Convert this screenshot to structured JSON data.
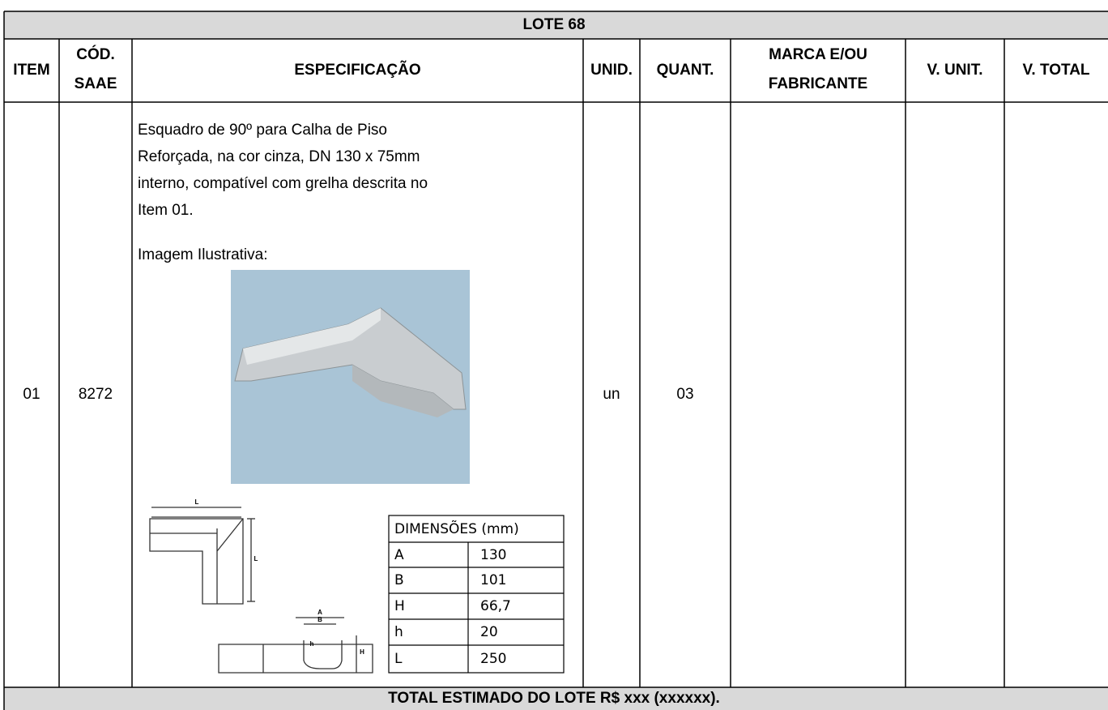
{
  "header": {
    "title": "LOTE 68"
  },
  "columns": [
    [
      "ITEM"
    ],
    [
      "CÓD.",
      "SAAE"
    ],
    [
      "ESPECIFICAÇÃO"
    ],
    [
      "UNID."
    ],
    [
      "QUANT."
    ],
    [
      "MARCA E/OU",
      "FABRICANTE"
    ],
    [
      "V. UNIT."
    ],
    [
      "V. TOTAL"
    ]
  ],
  "rows": [
    {
      "item": "01",
      "code": "8272",
      "specification": [
        "Esquadro de 90º para Calha de Piso",
        "Reforçada, na cor cinza, DN 130 x 75mm",
        "interno, compatível com grelha descrita no",
        "Item 01."
      ],
      "image_caption": "Imagem Ilustrativa:",
      "drawing_labels": [
        "L",
        "L",
        "A",
        "B",
        "h",
        "H"
      ],
      "dimensions": {
        "title": "DIMENSÕES (mm)",
        "rows": [
          [
            "A",
            "130"
          ],
          [
            "B",
            "101"
          ],
          [
            "H",
            "66,7"
          ],
          [
            "h",
            "20"
          ],
          [
            "L",
            "250"
          ]
        ]
      },
      "unit": "un",
      "quantity": "03"
    }
  ],
  "footer": "TOTAL ESTIMADO DO LOTE R$ xxx (xxxxxx)."
}
